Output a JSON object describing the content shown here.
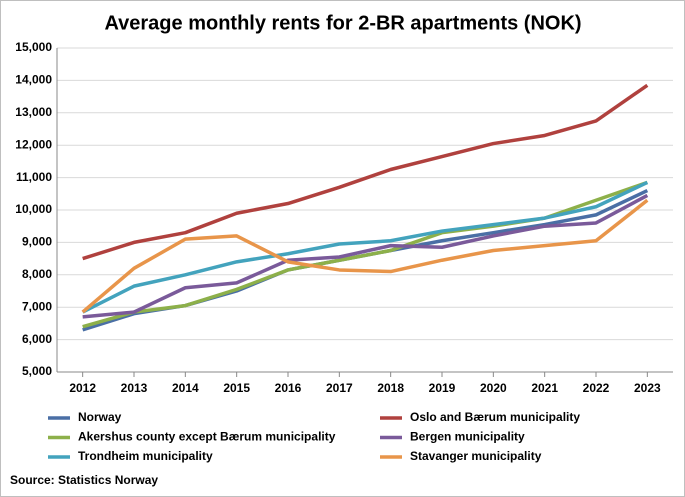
{
  "chart_data": {
    "type": "line",
    "title": "Average monthly rents for 2-BR apartments (NOK)",
    "x": [
      2012,
      2013,
      2014,
      2015,
      2016,
      2017,
      2018,
      2019,
      2020,
      2021,
      2022,
      2023
    ],
    "series": [
      {
        "name": "Norway",
        "color": "#4a6fa5",
        "values": [
          6300,
          6800,
          7050,
          7500,
          8150,
          8450,
          8750,
          9050,
          9300,
          9550,
          9850,
          10600
        ]
      },
      {
        "name": "Oslo and Bærum municipality",
        "color": "#b0413e",
        "values": [
          8500,
          9000,
          9300,
          9900,
          10200,
          10700,
          11250,
          11650,
          12050,
          12300,
          12750,
          13850
        ]
      },
      {
        "name": "Akershus county except Bærum municipality",
        "color": "#8db04a",
        "values": [
          6400,
          6850,
          7050,
          7550,
          8150,
          8450,
          8750,
          9300,
          9500,
          9750,
          10300,
          10850
        ]
      },
      {
        "name": "Bergen municipality",
        "color": "#7a5a9a",
        "values": [
          6700,
          6850,
          7600,
          7750,
          8450,
          8550,
          8900,
          8850,
          9200,
          9500,
          9600,
          10450
        ]
      },
      {
        "name": "Trondheim municipality",
        "color": "#43a3bd",
        "values": [
          6850,
          7650,
          8000,
          8400,
          8650,
          8950,
          9050,
          9350,
          9550,
          9750,
          10100,
          10850
        ]
      },
      {
        "name": "Stavanger municipality",
        "color": "#e8954a",
        "values": [
          6850,
          8200,
          9100,
          9200,
          8400,
          8150,
          8100,
          8450,
          8750,
          8900,
          9050,
          10300
        ]
      }
    ],
    "xlim": [
      2011.5,
      2023.5
    ],
    "ylim": [
      5000,
      15000
    ],
    "yticks": [
      {
        "value": 5000,
        "label": "5,000"
      },
      {
        "value": 6000,
        "label": "6,000"
      },
      {
        "value": 7000,
        "label": "7,000"
      },
      {
        "value": 8000,
        "label": "8,000"
      },
      {
        "value": 9000,
        "label": "9,000"
      },
      {
        "value": 10000,
        "label": "10,000"
      },
      {
        "value": 11000,
        "label": "11,000"
      },
      {
        "value": 12000,
        "label": "12,000"
      },
      {
        "value": 13000,
        "label": "13,000"
      },
      {
        "value": 14000,
        "label": "14,000"
      },
      {
        "value": 15000,
        "label": "15,000"
      }
    ],
    "grid": true,
    "legend": "bottom",
    "source": "Source: Statistics Norway"
  }
}
